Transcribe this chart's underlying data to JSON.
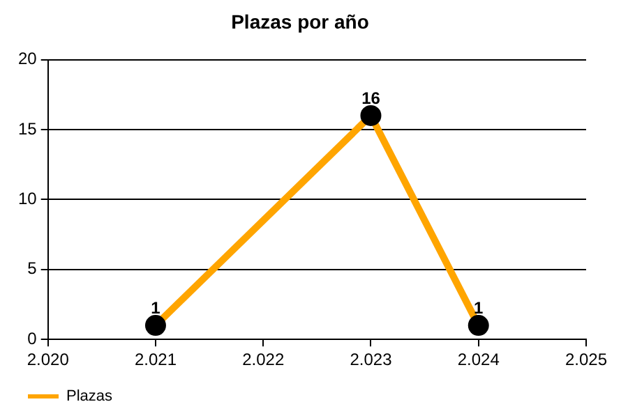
{
  "chart_data": {
    "type": "line",
    "title": "Plazas por año",
    "x": [
      2021,
      2023,
      2024
    ],
    "series": [
      {
        "name": "Plazas",
        "color": "#ffa500",
        "values": [
          1,
          16,
          1
        ]
      }
    ],
    "xlim": [
      2020,
      2025
    ],
    "xticks": [
      {
        "value": 2020,
        "label": "2.020"
      },
      {
        "value": 2021,
        "label": "2.021"
      },
      {
        "value": 2022,
        "label": "2.022"
      },
      {
        "value": 2023,
        "label": "2.023"
      },
      {
        "value": 2024,
        "label": "2.024"
      },
      {
        "value": 2025,
        "label": "2.025"
      }
    ],
    "ylim": [
      0,
      20
    ],
    "yticks": [
      0,
      5,
      10,
      15,
      20
    ],
    "grid": "y",
    "legend": "bottom left",
    "marker": "circle",
    "line_style": "solid",
    "data_labels": true
  }
}
